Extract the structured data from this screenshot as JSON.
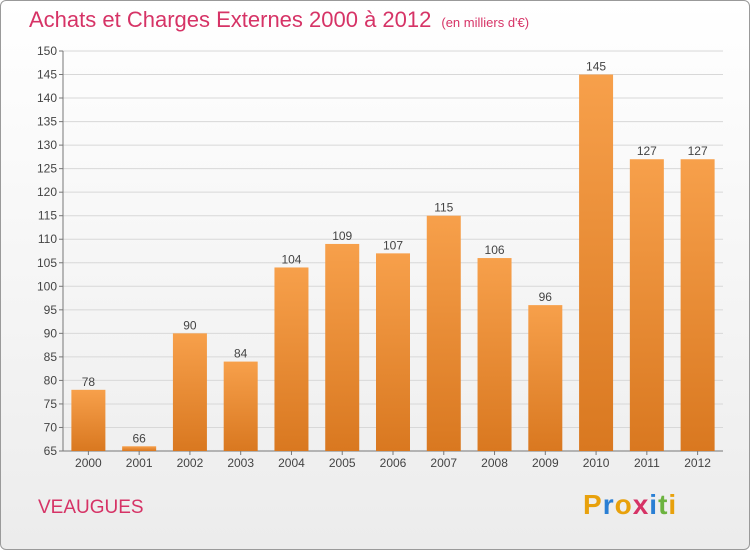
{
  "title": "Achats et Charges Externes 2000 à 2012",
  "unit": "(en milliers d'€)",
  "commune": "VEAUGUES",
  "logo": {
    "letters": [
      "P",
      "r",
      "o",
      "x",
      "i",
      "t",
      "i"
    ],
    "colors": [
      "#e8a10c",
      "#2a7fd4",
      "#e8a10c",
      "#d63366",
      "#2a7fd4",
      "#6cb33f",
      "#e8a10c"
    ]
  },
  "colors": {
    "accent": "#d63366",
    "bar_top": "#f7a04b",
    "bar_bottom": "#d97820",
    "grid": "#d8d8d8"
  },
  "chart_data": {
    "type": "bar",
    "categories": [
      "2000",
      "2001",
      "2002",
      "2003",
      "2004",
      "2005",
      "2006",
      "2007",
      "2008",
      "2009",
      "2010",
      "2011",
      "2012"
    ],
    "values": [
      78,
      66,
      90,
      84,
      104,
      109,
      107,
      115,
      106,
      96,
      145,
      127,
      127
    ],
    "ylim": [
      65,
      150
    ],
    "yticks": [
      65,
      70,
      75,
      80,
      85,
      90,
      95,
      100,
      105,
      110,
      115,
      120,
      125,
      130,
      135,
      140,
      145,
      150
    ],
    "grid": true,
    "legend": "none"
  }
}
